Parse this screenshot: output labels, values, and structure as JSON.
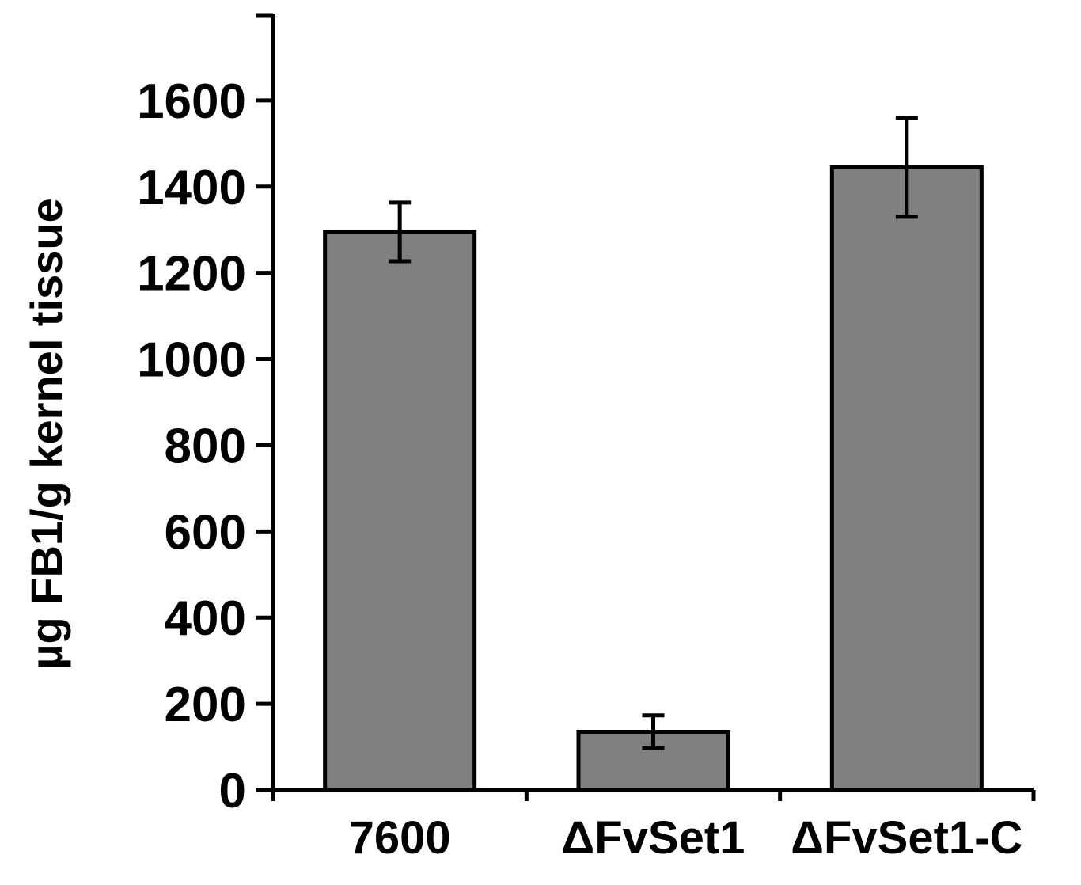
{
  "chart_data": {
    "type": "bar",
    "title": "",
    "xlabel": "",
    "ylabel": "µg FB1/g kernel tissue",
    "categories": [
      "7600",
      "ΔFvSet1",
      "ΔFvSet1-C"
    ],
    "values": [
      1295,
      135,
      1445
    ],
    "error": [
      68,
      38,
      115
    ],
    "ylim": [
      0,
      1800
    ],
    "yticks": [
      "0",
      "200",
      "400",
      "600",
      "800",
      "1000",
      "1200",
      "1400",
      "1600"
    ],
    "ytick_values": [
      0,
      200,
      400,
      600,
      800,
      1000,
      1200,
      1400,
      1600
    ],
    "grid": false,
    "legend": "none",
    "bar_color": "#808080",
    "edge_color": "#000000"
  }
}
